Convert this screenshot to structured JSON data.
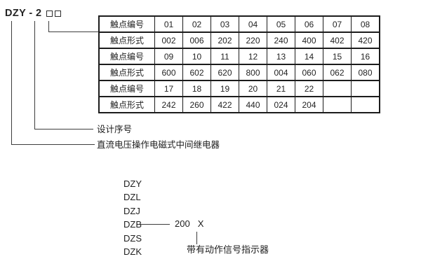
{
  "model_code": {
    "text": "DZY - 2",
    "placeholder_squares": [
      "□",
      "□"
    ]
  },
  "contact_table": {
    "rows": [
      [
        "触点编号",
        "01",
        "02",
        "03",
        "04",
        "05",
        "06",
        "07",
        "08"
      ],
      [
        "触点形式",
        "002",
        "006",
        "202",
        "220",
        "240",
        "400",
        "402",
        "420"
      ],
      [
        "触点编号",
        "09",
        "10",
        "11",
        "12",
        "13",
        "14",
        "15",
        "16"
      ],
      [
        "触点形式",
        "600",
        "602",
        "620",
        "800",
        "004",
        "060",
        "062",
        "080"
      ],
      [
        "触点编号",
        "17",
        "18",
        "19",
        "20",
        "21",
        "22",
        "",
        ""
      ],
      [
        "触点形式",
        "242",
        "260",
        "422",
        "440",
        "024",
        "204",
        "",
        ""
      ]
    ]
  },
  "callouts": {
    "design_serial": "设计序号",
    "relay_description": "直流电压操作电磁式中间继电器"
  },
  "model_prefixes": [
    "DZY",
    "DZL",
    "DZJ",
    "DZB",
    "DZS",
    "DZK"
  ],
  "model_example": {
    "number": "200",
    "suffix": "X",
    "note": "带有动作信号指示器"
  },
  "colors": {
    "text": "#1a1a1a",
    "line": "#3d3d3d",
    "table_border": "#1c1c1c",
    "background": "#ffffff"
  }
}
